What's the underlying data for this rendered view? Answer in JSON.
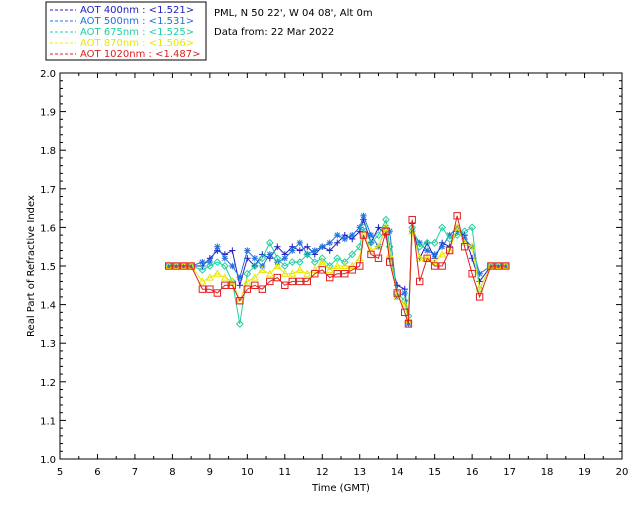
{
  "chart_data": {
    "type": "line",
    "title": "PML, N 50 22', W 04 08', Alt 0m",
    "subtitle": "Data from: 22 Mar 2022",
    "xlabel": "Time (GMT)",
    "ylabel": "Real Part of Refractive Index",
    "xlim": [
      5,
      20
    ],
    "ylim": [
      1.0,
      2.0
    ],
    "xticks": [
      "5",
      "6",
      "7",
      "8",
      "9",
      "10",
      "11",
      "12",
      "13",
      "14",
      "15",
      "16",
      "17",
      "18",
      "19",
      "20"
    ],
    "yticks": [
      "1.0",
      "1.1",
      "1.2",
      "1.3",
      "1.4",
      "1.5",
      "1.6",
      "1.7",
      "1.8",
      "1.9",
      "2.0"
    ],
    "grid": false,
    "legend_position": "top-left-outside",
    "series": [
      {
        "name": "AOT  400nm : <1.521>",
        "color": "#2020c0",
        "marker": "plus",
        "x": [
          7.9,
          8.1,
          8.3,
          8.5,
          8.8,
          9.0,
          9.2,
          9.4,
          9.6,
          9.8,
          10.0,
          10.2,
          10.4,
          10.6,
          10.8,
          11.0,
          11.2,
          11.4,
          11.6,
          11.8,
          12.0,
          12.2,
          12.4,
          12.6,
          12.8,
          13.0,
          13.1,
          13.3,
          13.5,
          13.7,
          13.8,
          14.0,
          14.2,
          14.3,
          14.4,
          14.6,
          14.8,
          15.0,
          15.2,
          15.4,
          15.6,
          15.8,
          16.0,
          16.2,
          16.5,
          16.7,
          16.9
        ],
        "y": [
          1.5,
          1.5,
          1.5,
          1.5,
          1.5,
          1.52,
          1.54,
          1.53,
          1.54,
          1.45,
          1.52,
          1.5,
          1.53,
          1.52,
          1.55,
          1.53,
          1.55,
          1.54,
          1.55,
          1.53,
          1.55,
          1.54,
          1.56,
          1.58,
          1.57,
          1.59,
          1.62,
          1.56,
          1.6,
          1.58,
          1.52,
          1.45,
          1.44,
          1.36,
          1.61,
          1.52,
          1.56,
          1.52,
          1.56,
          1.55,
          1.59,
          1.58,
          1.52,
          1.46,
          1.5,
          1.5,
          1.5
        ]
      },
      {
        "name": "AOT  500nm : <1.531>",
        "color": "#2070e0",
        "marker": "asterisk",
        "x": [
          7.9,
          8.1,
          8.3,
          8.5,
          8.8,
          9.0,
          9.2,
          9.4,
          9.6,
          9.8,
          10.0,
          10.2,
          10.4,
          10.6,
          10.8,
          11.0,
          11.2,
          11.4,
          11.6,
          11.8,
          12.0,
          12.2,
          12.4,
          12.6,
          12.8,
          13.0,
          13.1,
          13.3,
          13.5,
          13.7,
          13.8,
          14.0,
          14.2,
          14.3,
          14.4,
          14.6,
          14.8,
          15.0,
          15.2,
          15.4,
          15.6,
          15.8,
          16.0,
          16.2,
          16.5,
          16.7,
          16.9
        ],
        "y": [
          1.5,
          1.5,
          1.5,
          1.5,
          1.51,
          1.51,
          1.55,
          1.52,
          1.5,
          1.47,
          1.54,
          1.52,
          1.5,
          1.53,
          1.51,
          1.52,
          1.54,
          1.56,
          1.53,
          1.54,
          1.55,
          1.56,
          1.58,
          1.57,
          1.58,
          1.6,
          1.63,
          1.58,
          1.55,
          1.6,
          1.59,
          1.42,
          1.43,
          1.35,
          1.59,
          1.56,
          1.54,
          1.53,
          1.55,
          1.58,
          1.6,
          1.57,
          1.55,
          1.48,
          1.5,
          1.5,
          1.5
        ]
      },
      {
        "name": "AOT  675nm : <1.525>",
        "color": "#20d0a0",
        "marker": "diamond",
        "x": [
          7.9,
          8.1,
          8.3,
          8.5,
          8.8,
          9.0,
          9.2,
          9.4,
          9.6,
          9.8,
          10.0,
          10.2,
          10.4,
          10.6,
          10.8,
          11.0,
          11.2,
          11.4,
          11.6,
          11.8,
          12.0,
          12.2,
          12.4,
          12.6,
          12.8,
          13.0,
          13.1,
          13.3,
          13.5,
          13.7,
          13.8,
          14.0,
          14.2,
          14.3,
          14.4,
          14.6,
          14.8,
          15.0,
          15.2,
          15.4,
          15.6,
          15.8,
          16.0,
          16.2,
          16.5,
          16.7,
          16.9
        ],
        "y": [
          1.5,
          1.5,
          1.5,
          1.5,
          1.49,
          1.5,
          1.51,
          1.5,
          1.46,
          1.35,
          1.48,
          1.5,
          1.52,
          1.56,
          1.52,
          1.5,
          1.51,
          1.51,
          1.53,
          1.51,
          1.52,
          1.5,
          1.52,
          1.51,
          1.53,
          1.55,
          1.6,
          1.56,
          1.58,
          1.62,
          1.55,
          1.43,
          1.41,
          1.37,
          1.6,
          1.55,
          1.56,
          1.56,
          1.6,
          1.57,
          1.58,
          1.59,
          1.6,
          1.44,
          1.5,
          1.5,
          1.5
        ]
      },
      {
        "name": "AOT  870nm : <1.506>",
        "color": "#e8e800",
        "marker": "triangle",
        "x": [
          7.9,
          8.1,
          8.3,
          8.5,
          8.8,
          9.0,
          9.2,
          9.4,
          9.6,
          9.8,
          10.0,
          10.2,
          10.4,
          10.6,
          10.8,
          11.0,
          11.2,
          11.4,
          11.6,
          11.8,
          12.0,
          12.2,
          12.4,
          12.6,
          12.8,
          13.0,
          13.1,
          13.3,
          13.5,
          13.7,
          13.8,
          14.0,
          14.2,
          14.3,
          14.4,
          14.6,
          14.8,
          15.0,
          15.2,
          15.4,
          15.6,
          15.8,
          16.0,
          16.2,
          16.5,
          16.7,
          16.9
        ],
        "y": [
          1.5,
          1.5,
          1.5,
          1.5,
          1.46,
          1.47,
          1.48,
          1.47,
          1.46,
          1.41,
          1.46,
          1.47,
          1.49,
          1.48,
          1.5,
          1.48,
          1.48,
          1.49,
          1.48,
          1.49,
          1.51,
          1.49,
          1.5,
          1.5,
          1.5,
          1.52,
          1.58,
          1.54,
          1.55,
          1.6,
          1.53,
          1.42,
          1.4,
          1.36,
          1.59,
          1.52,
          1.52,
          1.51,
          1.53,
          1.54,
          1.6,
          1.56,
          1.55,
          1.44,
          1.5,
          1.5,
          1.5
        ]
      },
      {
        "name": "AOT 1020nm : <1.487>",
        "color": "#e02020",
        "marker": "square",
        "x": [
          7.9,
          8.1,
          8.3,
          8.5,
          8.8,
          9.0,
          9.2,
          9.4,
          9.6,
          9.8,
          10.0,
          10.2,
          10.4,
          10.6,
          10.8,
          11.0,
          11.2,
          11.4,
          11.6,
          11.8,
          12.0,
          12.2,
          12.4,
          12.6,
          12.8,
          13.0,
          13.1,
          13.3,
          13.5,
          13.7,
          13.8,
          14.0,
          14.2,
          14.3,
          14.4,
          14.6,
          14.8,
          15.0,
          15.2,
          15.4,
          15.6,
          15.8,
          16.0,
          16.2,
          16.5,
          16.7,
          16.9
        ],
        "y": [
          1.5,
          1.5,
          1.5,
          1.5,
          1.44,
          1.44,
          1.43,
          1.45,
          1.45,
          1.41,
          1.44,
          1.45,
          1.44,
          1.46,
          1.47,
          1.45,
          1.46,
          1.46,
          1.46,
          1.48,
          1.49,
          1.47,
          1.48,
          1.48,
          1.49,
          1.5,
          1.58,
          1.53,
          1.52,
          1.59,
          1.51,
          1.43,
          1.38,
          1.35,
          1.62,
          1.46,
          1.52,
          1.5,
          1.5,
          1.54,
          1.63,
          1.55,
          1.48,
          1.42,
          1.5,
          1.5,
          1.5
        ]
      }
    ]
  }
}
